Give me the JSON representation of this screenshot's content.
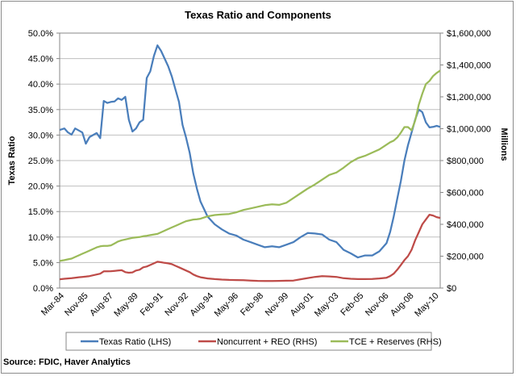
{
  "chart_data": {
    "type": "line",
    "title": "Texas Ratio and Components",
    "ylabel_left": "Texas Ratio",
    "ylabel_right": "Millions",
    "ylim_left": [
      0,
      50
    ],
    "ylim_right": [
      0,
      1600000
    ],
    "grid": true,
    "legend_position": "bottom",
    "left_ticks": [
      "0.0%",
      "5.0%",
      "10.0%",
      "15.0%",
      "20.0%",
      "25.0%",
      "30.0%",
      "35.0%",
      "40.0%",
      "45.0%",
      "50.0%"
    ],
    "right_ticks": [
      "$0",
      "$200,000",
      "$400,000",
      "$600,000",
      "$800,000",
      "$1,000,000",
      "$1,200,000",
      "$1,400,000",
      "$1,600,000"
    ],
    "x_tick_labels": [
      "Mar-84",
      "Nov-85",
      "Aug-87",
      "May-89",
      "Feb-91",
      "Nov-92",
      "Aug-94",
      "May-96",
      "Feb-98",
      "Nov-99",
      "Aug-01",
      "May-03",
      "Feb-05",
      "Nov-06",
      "Aug-08",
      "May-10"
    ],
    "x_start_year": 1984.167,
    "x_end_year": 2010.75,
    "x": [
      1984.17,
      1984.5,
      1984.75,
      1985.0,
      1985.25,
      1985.5,
      1985.75,
      1986.0,
      1986.25,
      1986.5,
      1986.75,
      1987.0,
      1987.25,
      1987.5,
      1987.75,
      1988.0,
      1988.25,
      1988.5,
      1988.75,
      1989.0,
      1989.25,
      1989.5,
      1989.75,
      1990.0,
      1990.25,
      1990.5,
      1990.75,
      1991.0,
      1991.25,
      1991.5,
      1991.75,
      1992.0,
      1992.25,
      1992.5,
      1992.75,
      1993.0,
      1993.25,
      1993.5,
      1993.75,
      1994.0,
      1994.5,
      1995.0,
      1995.5,
      1996.0,
      1996.5,
      1997.0,
      1997.5,
      1998.0,
      1998.5,
      1999.0,
      1999.5,
      2000.0,
      2000.5,
      2001.0,
      2001.5,
      2002.0,
      2002.5,
      2003.0,
      2003.5,
      2004.0,
      2004.5,
      2005.0,
      2005.5,
      2006.0,
      2006.5,
      2007.0,
      2007.25,
      2007.5,
      2007.75,
      2008.0,
      2008.25,
      2008.5,
      2008.75,
      2009.0,
      2009.25,
      2009.5,
      2009.75,
      2010.0,
      2010.25,
      2010.5,
      2010.75
    ],
    "series": [
      {
        "name": "Texas Ratio (LHS)",
        "axis": "left",
        "color": "#4a7ebb",
        "values": [
          31.0,
          31.3,
          30.5,
          30.1,
          31.3,
          30.9,
          30.5,
          28.3,
          29.6,
          30.0,
          30.4,
          29.4,
          36.7,
          36.3,
          36.5,
          36.6,
          37.2,
          36.9,
          37.5,
          33.0,
          30.7,
          31.3,
          32.5,
          33.0,
          41.2,
          42.5,
          45.5,
          47.6,
          46.5,
          45.0,
          43.5,
          41.5,
          39.0,
          36.5,
          32.0,
          29.5,
          26.5,
          22.5,
          19.5,
          17.0,
          14.0,
          12.5,
          11.5,
          10.7,
          10.3,
          9.5,
          9.0,
          8.5,
          8.0,
          8.2,
          8.0,
          8.5,
          9.0,
          10.0,
          10.8,
          10.7,
          10.5,
          9.5,
          9.0,
          7.5,
          6.8,
          6.0,
          6.4,
          6.4,
          7.2,
          8.8,
          11.0,
          14.0,
          17.5,
          21.0,
          25.0,
          28.0,
          30.5,
          33.0,
          35.0,
          34.5,
          32.5,
          31.5,
          31.6,
          31.8,
          31.6
        ]
      },
      {
        "name": "Noncurrent + REO (RHS)",
        "axis": "right",
        "color": "#be4b48",
        "values": [
          55000,
          58000,
          60000,
          62000,
          65000,
          68000,
          70000,
          72000,
          75000,
          80000,
          85000,
          90000,
          105000,
          105000,
          106000,
          108000,
          110000,
          112000,
          100000,
          96000,
          98000,
          110000,
          115000,
          130000,
          135000,
          145000,
          155000,
          165000,
          162000,
          158000,
          155000,
          150000,
          140000,
          130000,
          120000,
          110000,
          100000,
          85000,
          75000,
          68000,
          60000,
          56000,
          53000,
          51000,
          50000,
          49000,
          47000,
          45000,
          44000,
          44000,
          45000,
          46000,
          47000,
          55000,
          63000,
          70000,
          75000,
          73000,
          70000,
          62000,
          58000,
          56000,
          56000,
          57000,
          60000,
          65000,
          75000,
          90000,
          115000,
          145000,
          175000,
          200000,
          240000,
          300000,
          350000,
          400000,
          430000,
          460000,
          455000,
          445000,
          440000
        ]
      },
      {
        "name": "TCE + Reserves (RHS)",
        "axis": "right",
        "color": "#9bbb59",
        "values": [
          170000,
          175000,
          180000,
          185000,
          195000,
          205000,
          215000,
          225000,
          235000,
          245000,
          255000,
          262000,
          265000,
          265000,
          268000,
          280000,
          292000,
          300000,
          305000,
          310000,
          315000,
          318000,
          320000,
          325000,
          328000,
          332000,
          336000,
          340000,
          350000,
          360000,
          370000,
          380000,
          390000,
          400000,
          410000,
          420000,
          425000,
          430000,
          432000,
          435000,
          450000,
          458000,
          462000,
          465000,
          475000,
          490000,
          500000,
          510000,
          520000,
          525000,
          522000,
          535000,
          565000,
          595000,
          625000,
          650000,
          680000,
          710000,
          725000,
          755000,
          790000,
          815000,
          830000,
          850000,
          870000,
          900000,
          915000,
          925000,
          945000,
          975000,
          1010000,
          1010000,
          990000,
          1050000,
          1150000,
          1220000,
          1280000,
          1300000,
          1330000,
          1350000,
          1365000
        ]
      }
    ]
  },
  "legend": {
    "items": [
      {
        "label": "Texas Ratio (LHS)",
        "color": "#4a7ebb"
      },
      {
        "label": "Noncurrent + REO (RHS)",
        "color": "#be4b48"
      },
      {
        "label": "TCE + Reserves (RHS)",
        "color": "#9bbb59"
      }
    ]
  },
  "source": "Source:  FDIC, Haver Analytics"
}
